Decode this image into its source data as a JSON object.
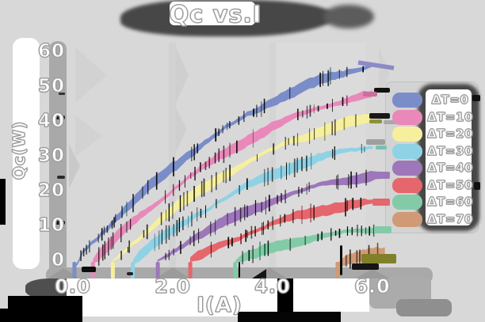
{
  "title": "Qc vs.I",
  "colors": {
    "background": "#d8d8d8",
    "panel_white": "#ffffff",
    "axis_band_gray": "#a9a9a9",
    "shadow_blob": "#474747",
    "text_fill": "#ffffff",
    "text_outline": "#9c9c9c"
  },
  "chart_data": {
    "type": "line",
    "title": "Qc vs.I",
    "xlabel": "I(A)",
    "ylabel": "Qc(W)",
    "xlim": [
      -0.3,
      6.6
    ],
    "ylim": [
      -4,
      62
    ],
    "grid": false,
    "legend_position": "right",
    "x_ticks": [
      {
        "value": 0,
        "label": "0.0"
      },
      {
        "value": 2,
        "label": "2.0"
      },
      {
        "value": 4,
        "label": "4.0"
      },
      {
        "value": 6,
        "label": "6.0"
      }
    ],
    "y_ticks": [
      {
        "value": 0,
        "label": "0"
      },
      {
        "value": 10,
        "label": "10"
      },
      {
        "value": 20,
        "label": "20"
      },
      {
        "value": 30,
        "label": "30"
      },
      {
        "value": 40,
        "label": "40"
      },
      {
        "value": 50,
        "label": "50"
      },
      {
        "value": 60,
        "label": "60"
      }
    ],
    "series": [
      {
        "id": "dt-0",
        "name": "ΔT=0",
        "color": "#7b8dc9",
        "tick_color": "#14525e",
        "points": [
          [
            0.03,
            -2.0
          ],
          [
            0.25,
            3.5
          ],
          [
            0.5,
            7.0
          ],
          [
            1.0,
            14.2
          ],
          [
            1.5,
            20.9
          ],
          [
            2.0,
            27.0
          ],
          [
            2.5,
            32.6
          ],
          [
            3.0,
            37.6
          ],
          [
            3.5,
            42.0
          ],
          [
            4.0,
            45.9
          ],
          [
            4.5,
            49.3
          ],
          [
            5.0,
            52.1
          ],
          [
            5.5,
            54.3
          ],
          [
            6.05,
            56.3
          ]
        ]
      },
      {
        "id": "dt-10",
        "name": "ΔT=10",
        "color": "#e989ba",
        "tick_color": "#7e2050",
        "points": [
          [
            0.4,
            0.0
          ],
          [
            0.75,
            5.0
          ],
          [
            1.0,
            8.4
          ],
          [
            1.5,
            14.7
          ],
          [
            2.0,
            20.6
          ],
          [
            2.5,
            25.9
          ],
          [
            3.0,
            30.6
          ],
          [
            3.5,
            34.9
          ],
          [
            4.0,
            38.6
          ],
          [
            4.5,
            41.7
          ],
          [
            5.0,
            44.4
          ],
          [
            5.5,
            46.4
          ],
          [
            6.0,
            48.0
          ]
        ]
      },
      {
        "id": "dt-20",
        "name": "ΔT=20",
        "color": "#f6f09e",
        "tick_color": "#6b6b10",
        "points": [
          [
            0.8,
            0.0
          ],
          [
            1.0,
            2.6
          ],
          [
            1.5,
            8.9
          ],
          [
            2.0,
            14.6
          ],
          [
            2.5,
            19.7
          ],
          [
            3.0,
            24.4
          ],
          [
            3.5,
            28.5
          ],
          [
            4.0,
            32.0
          ],
          [
            4.5,
            35.1
          ],
          [
            5.0,
            37.6
          ],
          [
            5.5,
            39.6
          ],
          [
            6.1,
            41.2
          ]
        ]
      },
      {
        "id": "dt-30",
        "name": "ΔT=30",
        "color": "#8fd2e5",
        "tick_color": "#0c5f75",
        "points": [
          [
            1.2,
            0.0
          ],
          [
            1.5,
            3.4
          ],
          [
            2.0,
            8.7
          ],
          [
            2.5,
            13.5
          ],
          [
            3.0,
            17.8
          ],
          [
            3.5,
            21.6
          ],
          [
            4.0,
            24.9
          ],
          [
            4.5,
            27.6
          ],
          [
            5.0,
            29.9
          ],
          [
            5.5,
            31.7
          ],
          [
            6.0,
            33.0
          ]
        ]
      },
      {
        "id": "dt-40",
        "name": "ΔT=40",
        "color": "#9d77b9",
        "tick_color": "#3a1f5e",
        "points": [
          [
            1.7,
            0.0
          ],
          [
            2.0,
            2.8
          ],
          [
            2.5,
            7.2
          ],
          [
            3.0,
            11.0
          ],
          [
            3.5,
            14.4
          ],
          [
            4.0,
            17.4
          ],
          [
            4.5,
            19.8
          ],
          [
            5.0,
            21.9
          ],
          [
            5.5,
            23.4
          ],
          [
            6.15,
            24.7
          ]
        ]
      },
      {
        "id": "dt-50",
        "name": "ΔT=50",
        "color": "#e5666c",
        "tick_color": "#7e1520",
        "points": [
          [
            2.35,
            0.0
          ],
          [
            2.5,
            1.2
          ],
          [
            3.0,
            4.8
          ],
          [
            3.5,
            7.9
          ],
          [
            4.0,
            10.6
          ],
          [
            4.5,
            12.9
          ],
          [
            5.0,
            14.7
          ],
          [
            5.5,
            16.1
          ],
          [
            6.0,
            17.0
          ]
        ]
      },
      {
        "id": "dt-60",
        "name": "ΔT=60",
        "color": "#83cba7",
        "tick_color": "#0e5e3a",
        "points": [
          [
            3.25,
            0.0
          ],
          [
            3.5,
            1.3
          ],
          [
            4.0,
            3.7
          ],
          [
            4.5,
            5.7
          ],
          [
            5.0,
            7.2
          ],
          [
            5.5,
            8.3
          ],
          [
            6.2,
            9.2
          ]
        ]
      },
      {
        "id": "dt-70",
        "name": "ΔT=70",
        "color": "#d09a76",
        "tick_color": "#6e3c1a",
        "points": [
          [
            5.3,
            -1.5
          ],
          [
            5.45,
            0.0
          ],
          [
            5.6,
            1.0
          ],
          [
            5.8,
            2.0
          ],
          [
            6.0,
            2.6
          ],
          [
            6.25,
            3.0
          ]
        ]
      }
    ]
  }
}
